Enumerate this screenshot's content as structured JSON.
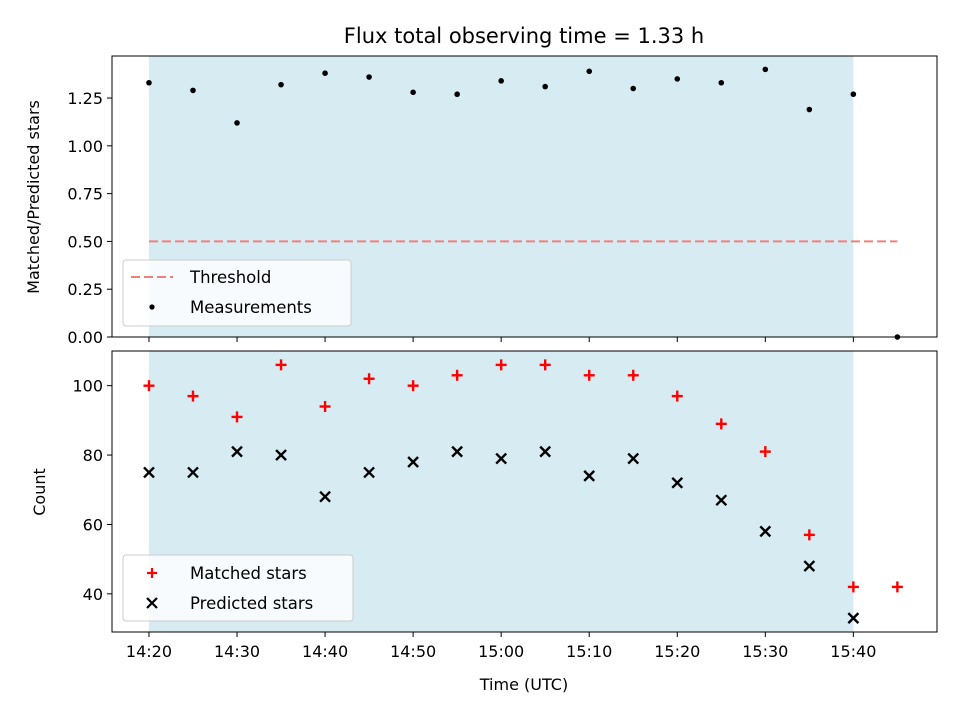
{
  "chart_data": {
    "title": "Flux total observing time = 1.33 h",
    "xlabel": "Time (UTC)",
    "x_ticks": [
      "14:20",
      "14:30",
      "14:40",
      "14:50",
      "15:00",
      "15:10",
      "15:20",
      "15:30",
      "15:40"
    ],
    "x_tick_minutes": [
      0,
      10,
      20,
      30,
      40,
      50,
      60,
      70,
      80
    ],
    "x_range_minutes": [
      -4.2,
      89.5
    ],
    "shaded_span_minutes": [
      0,
      80
    ],
    "shade_color": "#add8e6",
    "charts": [
      {
        "type": "scatter",
        "ylabel": "Matched/Predicted stars",
        "ylim": [
          0,
          1.47
        ],
        "y_ticks": [
          "0.00",
          "0.25",
          "0.50",
          "0.75",
          "1.00",
          "1.25"
        ],
        "y_tick_values": [
          0,
          0.25,
          0.5,
          0.75,
          1.0,
          1.25
        ],
        "threshold": {
          "name": "Threshold",
          "value": 0.5,
          "x_from": 0,
          "x_to": 85,
          "color": "#f08080"
        },
        "series": [
          {
            "name": "Measurements",
            "marker": "dot",
            "color": "#000000",
            "x": [
              0,
              5,
              10,
              15,
              20,
              25,
              30,
              35,
              40,
              45,
              50,
              55,
              60,
              65,
              70,
              75,
              80,
              85
            ],
            "values": [
              1.33,
              1.29,
              1.12,
              1.32,
              1.38,
              1.36,
              1.28,
              1.27,
              1.34,
              1.31,
              1.39,
              1.3,
              1.35,
              1.33,
              1.4,
              1.19,
              1.27,
              0.0
            ]
          }
        ]
      },
      {
        "type": "scatter",
        "ylabel": "Count",
        "ylim": [
          29,
          110
        ],
        "y_ticks": [
          "40",
          "60",
          "80",
          "100"
        ],
        "y_tick_values": [
          40,
          60,
          80,
          100
        ],
        "series": [
          {
            "name": "Matched stars",
            "marker": "plus",
            "color": "#ff0000",
            "x": [
              0,
              5,
              10,
              15,
              20,
              25,
              30,
              35,
              40,
              45,
              50,
              55,
              60,
              65,
              70,
              75,
              80,
              85
            ],
            "values": [
              100,
              97,
              91,
              106,
              94,
              102,
              100,
              103,
              106,
              106,
              103,
              103,
              97,
              89,
              81,
              57,
              42,
              42
            ]
          },
          {
            "name": "Predicted stars",
            "marker": "x",
            "color": "#000000",
            "x": [
              0,
              5,
              10,
              15,
              20,
              25,
              30,
              35,
              40,
              45,
              50,
              55,
              60,
              65,
              70,
              75,
              80
            ],
            "values": [
              75,
              75,
              81,
              80,
              68,
              75,
              78,
              81,
              79,
              81,
              74,
              79,
              72,
              67,
              58,
              48,
              33
            ]
          }
        ]
      }
    ]
  }
}
